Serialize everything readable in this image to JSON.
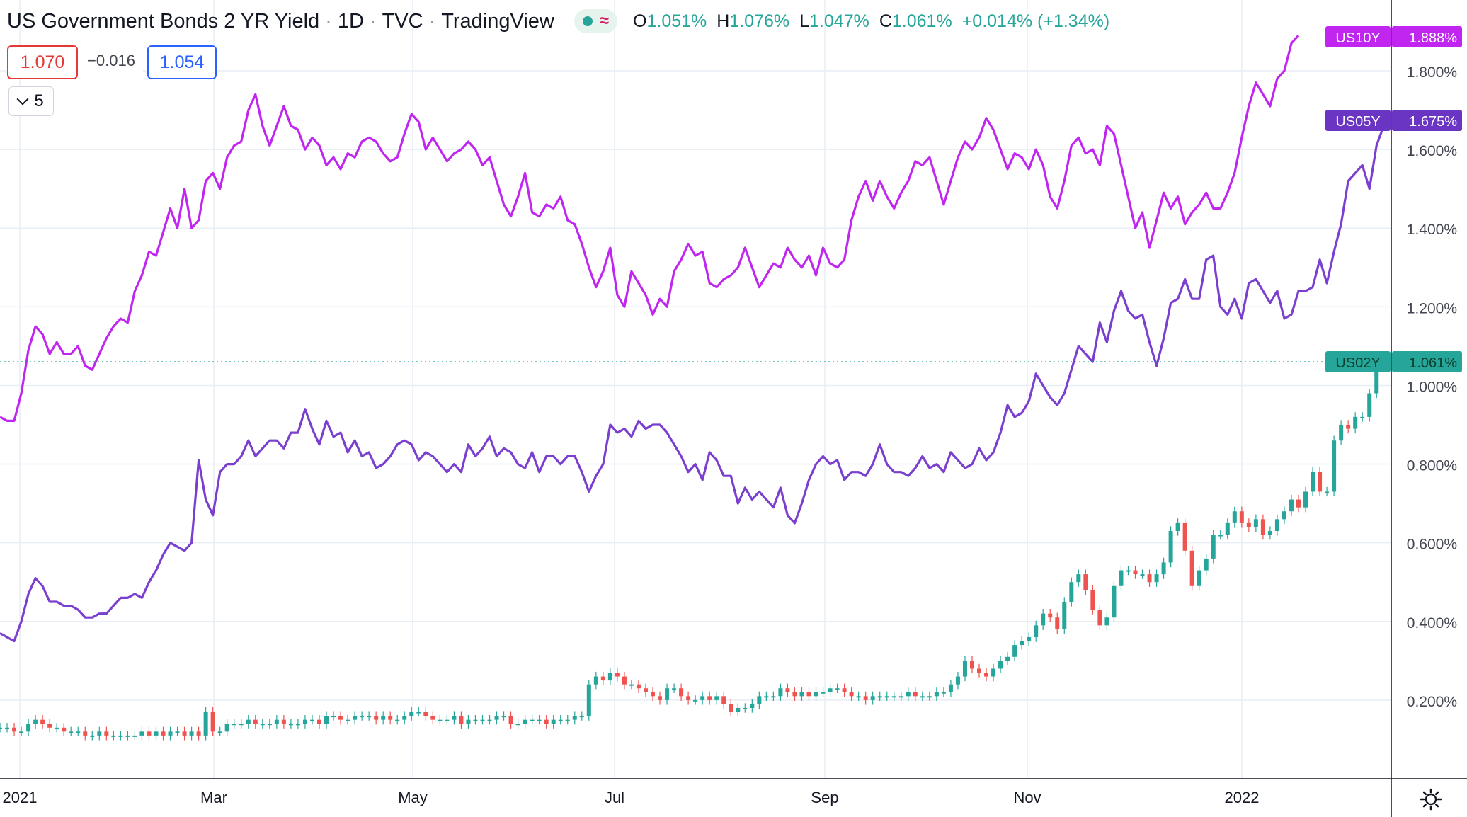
{
  "header": {
    "title": "US Government Bonds 2 YR Yield",
    "interval": "1D",
    "exchange": "TVC",
    "source": "TradingView",
    "status_icons": [
      "market-open-dot-icon",
      "replay-wave-icon"
    ],
    "ohlc": {
      "o_label": "O",
      "o_value": "1.051%",
      "h_label": "H",
      "h_value": "1.076%",
      "l_label": "L",
      "l_value": "1.047%",
      "c_label": "C",
      "c_value": "1.061%",
      "change": "+0.014% (+1.34%)"
    }
  },
  "trade": {
    "sell": "1.070",
    "spread": "−0.016",
    "buy": "1.054"
  },
  "indicator_toggle": {
    "count": "5"
  },
  "colors": {
    "us10y": "#c026f0",
    "us05y": "#7b3fd0",
    "up": "#26a69a",
    "down": "#ef5350",
    "grid": "#e8eef5",
    "axis_text": "#434651",
    "last_price_line": "#26a69a"
  },
  "chart_data": {
    "type": "line",
    "x_tick_labels": [
      "2021",
      "Mar",
      "May",
      "Jul",
      "Sep",
      "Nov",
      "2022"
    ],
    "y_tick_labels": [
      "0.200%",
      "0.400%",
      "0.600%",
      "0.800%",
      "1.000%",
      "1.200%",
      "1.400%",
      "1.600%",
      "1.800%"
    ],
    "ylim": [
      0.0,
      1.98
    ],
    "y_unit": "%",
    "grid": true,
    "series": [
      {
        "name": "US10Y",
        "badge_value": "1.888%",
        "color": "#c026f0",
        "values": [
          0.92,
          0.91,
          0.91,
          0.98,
          1.09,
          1.15,
          1.13,
          1.08,
          1.11,
          1.08,
          1.08,
          1.1,
          1.05,
          1.04,
          1.08,
          1.12,
          1.15,
          1.17,
          1.16,
          1.24,
          1.28,
          1.34,
          1.33,
          1.39,
          1.45,
          1.4,
          1.5,
          1.4,
          1.42,
          1.52,
          1.54,
          1.5,
          1.58,
          1.61,
          1.62,
          1.7,
          1.74,
          1.66,
          1.61,
          1.66,
          1.71,
          1.66,
          1.65,
          1.6,
          1.63,
          1.61,
          1.56,
          1.58,
          1.55,
          1.59,
          1.58,
          1.62,
          1.63,
          1.62,
          1.59,
          1.57,
          1.58,
          1.64,
          1.69,
          1.67,
          1.6,
          1.63,
          1.6,
          1.57,
          1.59,
          1.6,
          1.62,
          1.6,
          1.56,
          1.58,
          1.52,
          1.46,
          1.43,
          1.48,
          1.54,
          1.44,
          1.43,
          1.46,
          1.45,
          1.48,
          1.42,
          1.41,
          1.36,
          1.3,
          1.25,
          1.29,
          1.35,
          1.23,
          1.2,
          1.29,
          1.26,
          1.23,
          1.18,
          1.22,
          1.2,
          1.29,
          1.32,
          1.36,
          1.33,
          1.34,
          1.26,
          1.25,
          1.27,
          1.28,
          1.3,
          1.35,
          1.3,
          1.25,
          1.28,
          1.31,
          1.3,
          1.35,
          1.32,
          1.3,
          1.33,
          1.28,
          1.35,
          1.31,
          1.3,
          1.32,
          1.42,
          1.48,
          1.52,
          1.47,
          1.52,
          1.48,
          1.45,
          1.49,
          1.52,
          1.57,
          1.56,
          1.58,
          1.52,
          1.46,
          1.52,
          1.58,
          1.62,
          1.6,
          1.63,
          1.68,
          1.65,
          1.6,
          1.55,
          1.59,
          1.58,
          1.55,
          1.6,
          1.56,
          1.48,
          1.45,
          1.52,
          1.61,
          1.63,
          1.59,
          1.6,
          1.56,
          1.66,
          1.64,
          1.56,
          1.48,
          1.4,
          1.44,
          1.35,
          1.42,
          1.49,
          1.45,
          1.48,
          1.41,
          1.44,
          1.46,
          1.49,
          1.45,
          1.45,
          1.49,
          1.54,
          1.63,
          1.71,
          1.77,
          1.74,
          1.71,
          1.78,
          1.8,
          1.87,
          1.89
        ]
      },
      {
        "name": "US05Y",
        "badge_value": "1.675%",
        "color": "#7b3fd0",
        "values": [
          0.37,
          0.36,
          0.35,
          0.4,
          0.47,
          0.51,
          0.49,
          0.45,
          0.45,
          0.44,
          0.44,
          0.43,
          0.41,
          0.41,
          0.42,
          0.42,
          0.44,
          0.46,
          0.46,
          0.47,
          0.46,
          0.5,
          0.53,
          0.57,
          0.6,
          0.59,
          0.58,
          0.6,
          0.81,
          0.71,
          0.67,
          0.78,
          0.8,
          0.8,
          0.82,
          0.86,
          0.82,
          0.84,
          0.86,
          0.86,
          0.84,
          0.88,
          0.88,
          0.94,
          0.89,
          0.85,
          0.91,
          0.87,
          0.88,
          0.83,
          0.86,
          0.82,
          0.83,
          0.79,
          0.8,
          0.82,
          0.85,
          0.86,
          0.85,
          0.81,
          0.83,
          0.82,
          0.8,
          0.78,
          0.8,
          0.78,
          0.85,
          0.82,
          0.84,
          0.87,
          0.82,
          0.84,
          0.83,
          0.8,
          0.79,
          0.83,
          0.78,
          0.82,
          0.82,
          0.8,
          0.82,
          0.82,
          0.78,
          0.73,
          0.77,
          0.8,
          0.9,
          0.88,
          0.89,
          0.87,
          0.91,
          0.89,
          0.9,
          0.9,
          0.88,
          0.85,
          0.82,
          0.78,
          0.8,
          0.76,
          0.83,
          0.81,
          0.77,
          0.77,
          0.7,
          0.74,
          0.71,
          0.73,
          0.71,
          0.69,
          0.74,
          0.67,
          0.65,
          0.7,
          0.76,
          0.8,
          0.82,
          0.8,
          0.81,
          0.76,
          0.78,
          0.78,
          0.77,
          0.8,
          0.85,
          0.8,
          0.78,
          0.78,
          0.77,
          0.79,
          0.82,
          0.79,
          0.8,
          0.78,
          0.83,
          0.81,
          0.79,
          0.8,
          0.84,
          0.81,
          0.83,
          0.88,
          0.95,
          0.92,
          0.93,
          0.96,
          1.03,
          1.0,
          0.97,
          0.95,
          0.98,
          1.04,
          1.1,
          1.08,
          1.06,
          1.16,
          1.11,
          1.19,
          1.24,
          1.19,
          1.17,
          1.18,
          1.11,
          1.05,
          1.12,
          1.21,
          1.22,
          1.27,
          1.22,
          1.22,
          1.32,
          1.33,
          1.2,
          1.18,
          1.22,
          1.17,
          1.26,
          1.27,
          1.24,
          1.21,
          1.24,
          1.17,
          1.18,
          1.24,
          1.24,
          1.25,
          1.32,
          1.26,
          1.34,
          1.41,
          1.52,
          1.54,
          1.56,
          1.5,
          1.61,
          1.66,
          1.675
        ]
      },
      {
        "name": "US02Y",
        "badge_value": "1.061%",
        "color": "#26a69a",
        "type": "candlestick",
        "values": [
          0.13,
          0.13,
          0.12,
          0.12,
          0.14,
          0.15,
          0.14,
          0.13,
          0.13,
          0.12,
          0.12,
          0.12,
          0.11,
          0.11,
          0.12,
          0.11,
          0.11,
          0.11,
          0.11,
          0.11,
          0.12,
          0.11,
          0.12,
          0.11,
          0.12,
          0.12,
          0.11,
          0.12,
          0.11,
          0.17,
          0.12,
          0.12,
          0.14,
          0.14,
          0.14,
          0.15,
          0.14,
          0.14,
          0.14,
          0.15,
          0.14,
          0.14,
          0.14,
          0.15,
          0.15,
          0.14,
          0.16,
          0.16,
          0.15,
          0.15,
          0.16,
          0.16,
          0.16,
          0.15,
          0.16,
          0.15,
          0.15,
          0.16,
          0.17,
          0.17,
          0.16,
          0.15,
          0.15,
          0.15,
          0.16,
          0.14,
          0.15,
          0.15,
          0.15,
          0.15,
          0.16,
          0.16,
          0.14,
          0.14,
          0.15,
          0.15,
          0.15,
          0.14,
          0.15,
          0.15,
          0.15,
          0.16,
          0.16,
          0.24,
          0.26,
          0.25,
          0.27,
          0.26,
          0.24,
          0.24,
          0.23,
          0.22,
          0.21,
          0.2,
          0.23,
          0.23,
          0.21,
          0.2,
          0.2,
          0.21,
          0.2,
          0.21,
          0.19,
          0.17,
          0.18,
          0.18,
          0.19,
          0.21,
          0.21,
          0.21,
          0.23,
          0.22,
          0.21,
          0.22,
          0.21,
          0.22,
          0.22,
          0.23,
          0.23,
          0.22,
          0.21,
          0.21,
          0.2,
          0.21,
          0.21,
          0.21,
          0.21,
          0.21,
          0.22,
          0.21,
          0.21,
          0.21,
          0.22,
          0.22,
          0.24,
          0.26,
          0.3,
          0.28,
          0.27,
          0.26,
          0.28,
          0.3,
          0.31,
          0.34,
          0.35,
          0.36,
          0.39,
          0.42,
          0.41,
          0.38,
          0.45,
          0.5,
          0.52,
          0.48,
          0.43,
          0.39,
          0.41,
          0.49,
          0.53,
          0.53,
          0.52,
          0.52,
          0.5,
          0.52,
          0.55,
          0.63,
          0.65,
          0.58,
          0.49,
          0.53,
          0.56,
          0.62,
          0.62,
          0.65,
          0.68,
          0.65,
          0.64,
          0.66,
          0.62,
          0.63,
          0.66,
          0.68,
          0.71,
          0.69,
          0.73,
          0.78,
          0.73,
          0.73,
          0.86,
          0.9,
          0.89,
          0.92,
          0.92,
          0.98,
          1.05,
          1.06
        ]
      }
    ]
  }
}
